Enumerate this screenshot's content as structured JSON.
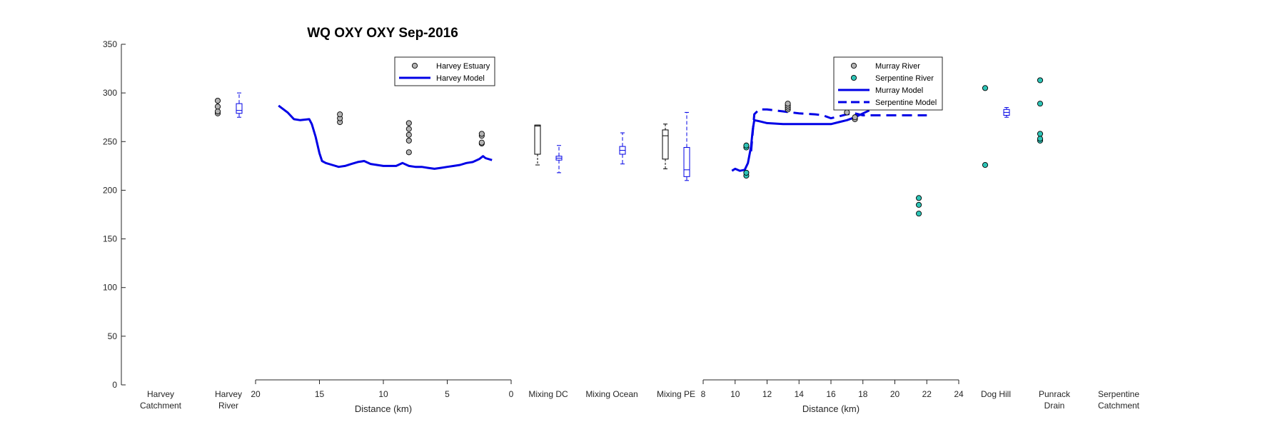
{
  "chart_data": {
    "type": "scatter",
    "title": "WQ OXY OXY Sep-2016",
    "ylim": [
      0,
      350
    ],
    "yticks": [
      0,
      50,
      100,
      150,
      200,
      250,
      300,
      350
    ],
    "grid": false,
    "categories": [
      "Harvey Catchment",
      "Harvey River",
      "Mixing DC",
      "Mixing Ocean",
      "Mixing PE",
      "Dog Hill",
      "Punrack Drain",
      "Serpentine Catchment"
    ],
    "category_lines": {
      "Harvey Catchment": [
        "Harvey",
        "Catchment"
      ],
      "Harvey River": [
        "Harvey",
        "River"
      ],
      "Mixing DC": [
        "Mixing DC"
      ],
      "Mixing Ocean": [
        "Mixing Ocean"
      ],
      "Mixing PE": [
        "Mixing PE"
      ],
      "Dog Hill": [
        "Dog Hill"
      ],
      "Punrack Drain": [
        "Punrack",
        "Drain"
      ],
      "Serpentine Catchment": [
        "Serpentine",
        "Catchment"
      ]
    },
    "harvey_axis": {
      "xlabel": "Distance (km)",
      "xlim": [
        20,
        0
      ],
      "xticks": [
        20,
        15,
        10,
        5,
        0
      ],
      "legend": [
        "Harvey Estuary",
        "Harvey Model"
      ],
      "legend_position": "top-right",
      "field": [
        {
          "x": 13.4,
          "values": [
            270,
            274,
            278
          ]
        },
        {
          "x": 8.0,
          "values": [
            239,
            251,
            257,
            263,
            269
          ]
        },
        {
          "x": 2.3,
          "values": [
            248,
            249,
            256,
            258
          ]
        }
      ],
      "model": {
        "x": [
          18.2,
          17.5,
          17.0,
          16.5,
          15.8,
          15.6,
          15.3,
          15.0,
          14.8,
          14.5,
          14.0,
          13.5,
          13.0,
          12.5,
          12.0,
          11.5,
          11.0,
          10.5,
          10.0,
          9.5,
          9.0,
          8.5,
          8.0,
          7.5,
          7.0,
          6.5,
          6.0,
          5.5,
          5.0,
          4.5,
          4.0,
          3.5,
          3.0,
          2.5,
          2.2,
          2.0,
          1.5
        ],
        "y": [
          287,
          280,
          273,
          272,
          273,
          268,
          255,
          238,
          230,
          228,
          226,
          224,
          225,
          227,
          229,
          230,
          227,
          226,
          225,
          225,
          225,
          228,
          225,
          224,
          224,
          223,
          222,
          223,
          224,
          225,
          226,
          228,
          229,
          232,
          235,
          233,
          231
        ]
      }
    },
    "murray_axis": {
      "xlabel": "Distance (km)",
      "xlim": [
        8,
        24
      ],
      "xticks": [
        8,
        10,
        12,
        14,
        16,
        18,
        20,
        22,
        24
      ],
      "legend": [
        "Murray River",
        "Serpentine River",
        "Murray Model",
        "Serpentine Model"
      ],
      "legend_position": "top-right",
      "murray_field": [
        {
          "x": 13.3,
          "values": [
            283,
            285,
            287,
            289
          ]
        },
        {
          "x": 17.0,
          "values": [
            280
          ]
        },
        {
          "x": 17.5,
          "values": [
            273,
            275
          ]
        }
      ],
      "serpentine_field": [
        {
          "x": 10.7,
          "values": [
            215,
            218,
            244,
            246
          ]
        },
        {
          "x": 21.5,
          "values": [
            176,
            185,
            192
          ]
        }
      ],
      "murray_model": {
        "x": [
          9.8,
          10.0,
          10.3,
          10.6,
          10.8,
          11.0,
          11.1,
          11.2,
          11.5,
          12.0,
          13.0,
          14.0,
          15.0,
          16.0,
          16.5,
          17.0,
          17.5,
          18.0,
          18.4
        ],
        "y": [
          220,
          222,
          220,
          221,
          228,
          245,
          262,
          272,
          271,
          269,
          268,
          268,
          268,
          268,
          270,
          272,
          275,
          279,
          282
        ]
      },
      "serpentine_model": {
        "x": [
          11.0,
          11.2,
          11.5,
          12.0,
          13.0,
          14.0,
          15.0,
          15.5,
          16.0,
          16.5,
          17.0,
          17.5,
          18.0,
          19.0,
          20.0,
          21.0,
          22.0
        ],
        "y": [
          240,
          278,
          283,
          283,
          281,
          279,
          278,
          277,
          274,
          276,
          278,
          279,
          277,
          277,
          277,
          277,
          277
        ]
      }
    },
    "boxes": [
      {
        "category": "Harvey River",
        "source": "field",
        "points": [
          279,
          281,
          286,
          292
        ]
      },
      {
        "category": "Harvey River",
        "source": "model",
        "min": 275,
        "q1": 279,
        "median": 282,
        "q3": 289,
        "max": 300
      },
      {
        "category": "Mixing DC",
        "source": "field",
        "min": 226,
        "q1": 237,
        "median": 266,
        "q3": 267,
        "max": 267
      },
      {
        "category": "Mixing DC",
        "source": "model",
        "min": 218,
        "q1": 231,
        "median": 233,
        "q3": 235,
        "max": 246
      },
      {
        "category": "Mixing Ocean",
        "source": "model",
        "min": 227,
        "q1": 237,
        "median": 241,
        "q3": 245,
        "max": 259
      },
      {
        "category": "Mixing PE",
        "source": "field",
        "min": 222,
        "q1": 232,
        "median": 256,
        "q3": 262,
        "max": 268
      },
      {
        "category": "Mixing PE",
        "source": "model",
        "min": 210,
        "q1": 214,
        "median": 221,
        "q3": 244,
        "max": 280
      },
      {
        "category": "Dog Hill",
        "source": "field",
        "points": [
          226,
          305
        ]
      },
      {
        "category": "Dog Hill",
        "source": "model",
        "min": 275,
        "q1": 277,
        "median": 280,
        "q3": 283,
        "max": 285
      },
      {
        "category": "Punrack Drain",
        "source": "field",
        "points": [
          251,
          253,
          258,
          289,
          313
        ]
      }
    ],
    "colors": {
      "model": "#0000e6",
      "field_marker": "#b3b3b3",
      "serpentine_marker": "#2ec4b6",
      "axis": "#262626"
    }
  }
}
